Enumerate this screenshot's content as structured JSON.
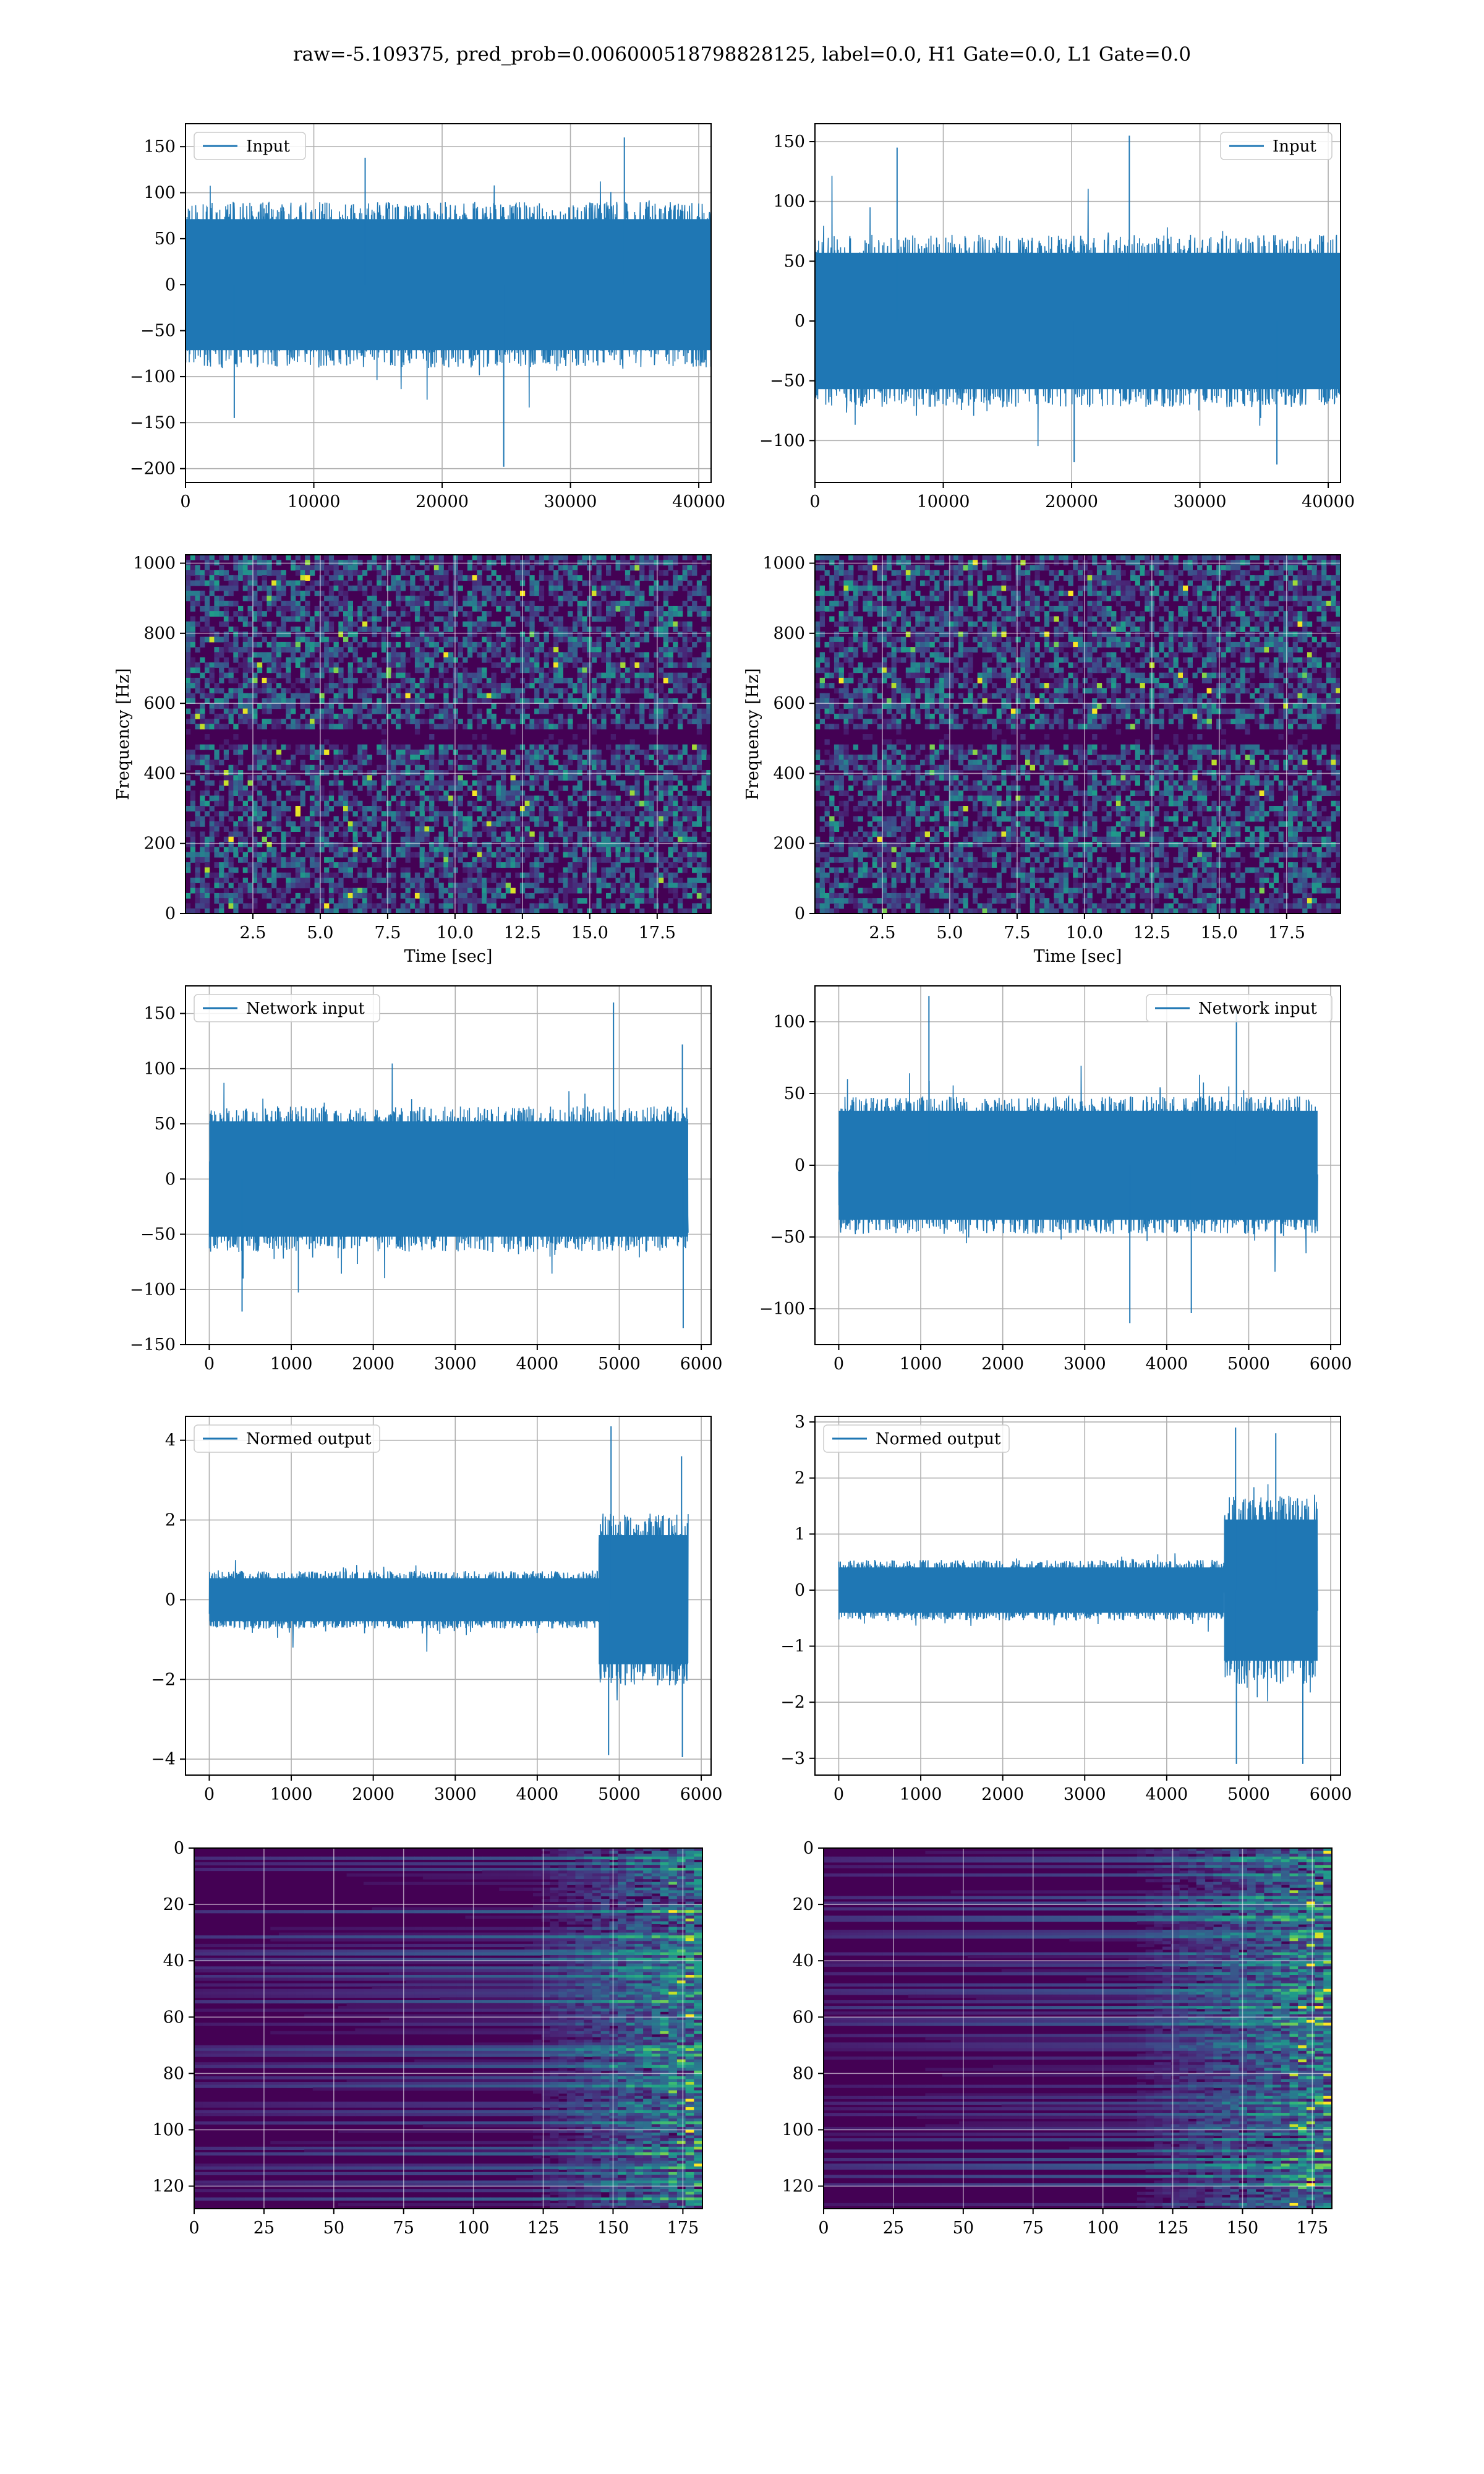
{
  "suptitle": "raw=-5.109375, pred_prob=0.006000518798828125, label=0.0, H1 Gate=0.0, L1 Gate=0.0",
  "colors": {
    "signal": "#1f77b4",
    "grid": "#b0b0b0",
    "viridis_dark": "#440154",
    "viridis_teal": "#21918c",
    "viridis_yellow": "#fde725"
  },
  "chart_data": [
    {
      "type": "line",
      "panel": "row1-left",
      "legend": "Input",
      "legend_loc": "upper left",
      "xlim": [
        0,
        40960
      ],
      "ylim": [
        -215,
        175
      ],
      "xticks": [
        0,
        10000,
        20000,
        30000,
        40000
      ],
      "yticks": [
        -200,
        -150,
        -100,
        -50,
        0,
        50,
        100,
        150
      ],
      "n_samples": 40960,
      "core_amplitude": 75,
      "extremes": [
        {
          "x": 24800,
          "y": -198
        },
        {
          "x": 34200,
          "y": 160
        },
        {
          "x": 3800,
          "y": -145
        },
        {
          "x": 14000,
          "y": 138
        }
      ],
      "grid": true
    },
    {
      "type": "line",
      "panel": "row1-right",
      "legend": "Input",
      "legend_loc": "upper right",
      "xlim": [
        0,
        40960
      ],
      "ylim": [
        -135,
        165
      ],
      "xticks": [
        0,
        10000,
        20000,
        30000,
        40000
      ],
      "yticks": [
        -100,
        -50,
        0,
        50,
        100,
        150
      ],
      "n_samples": 40960,
      "core_amplitude": 60,
      "extremes": [
        {
          "x": 24500,
          "y": 155
        },
        {
          "x": 6400,
          "y": 145
        },
        {
          "x": 20200,
          "y": -118
        },
        {
          "x": 36000,
          "y": -120
        }
      ],
      "grid": true
    },
    {
      "type": "heatmap",
      "panel": "row2-left",
      "xlabel": "Time [sec]",
      "ylabel": "Frequency [Hz]",
      "xlim": [
        0,
        19.5
      ],
      "ylim": [
        0,
        1024
      ],
      "xticks": [
        2.5,
        5.0,
        7.5,
        10.0,
        12.5,
        15.0,
        17.5
      ],
      "yticks": [
        0,
        200,
        400,
        600,
        800,
        1000
      ],
      "colormap": "viridis",
      "dark_band_hz": [
        480,
        520
      ],
      "grid": true
    },
    {
      "type": "heatmap",
      "panel": "row2-right",
      "xlabel": "Time [sec]",
      "ylabel": "Frequency [Hz]",
      "xlim": [
        0,
        19.5
      ],
      "ylim": [
        0,
        1024
      ],
      "xticks": [
        2.5,
        5.0,
        7.5,
        10.0,
        12.5,
        15.0,
        17.5
      ],
      "yticks": [
        0,
        200,
        400,
        600,
        800,
        1000
      ],
      "colormap": "viridis",
      "dark_band_hz": [
        480,
        520
      ],
      "grid": true
    },
    {
      "type": "line",
      "panel": "row3-left",
      "legend": "Network input",
      "legend_loc": "upper left",
      "xlim": [
        -290,
        6120
      ],
      "ylim": [
        -150,
        175
      ],
      "xticks": [
        0,
        1000,
        2000,
        3000,
        4000,
        5000,
        6000
      ],
      "yticks": [
        -150,
        -100,
        -50,
        0,
        50,
        100,
        150
      ],
      "n_samples": 5840,
      "core_amplitude": 55,
      "extremes": [
        {
          "x": 4930,
          "y": 160
        },
        {
          "x": 5780,
          "y": -135
        },
        {
          "x": 5770,
          "y": 122
        },
        {
          "x": 400,
          "y": -120
        }
      ],
      "grid": true
    },
    {
      "type": "line",
      "panel": "row3-right",
      "legend": "Network input",
      "legend_loc": "upper right",
      "xlim": [
        -290,
        6120
      ],
      "ylim": [
        -125,
        125
      ],
      "xticks": [
        0,
        1000,
        2000,
        3000,
        4000,
        5000,
        6000
      ],
      "yticks": [
        -100,
        -50,
        0,
        50,
        100
      ],
      "n_samples": 5840,
      "core_amplitude": 40,
      "extremes": [
        {
          "x": 4850,
          "y": 112
        },
        {
          "x": 1100,
          "y": 118
        },
        {
          "x": 3550,
          "y": -110
        },
        {
          "x": 4300,
          "y": -103
        }
      ],
      "grid": true
    },
    {
      "type": "line",
      "panel": "row4-left",
      "legend": "Normed output",
      "legend_loc": "upper left",
      "xlim": [
        -290,
        6120
      ],
      "ylim": [
        -4.4,
        4.6
      ],
      "xticks": [
        0,
        1000,
        2000,
        3000,
        4000,
        5000,
        6000
      ],
      "yticks": [
        -4,
        -2,
        0,
        2,
        4
      ],
      "n_samples": 5840,
      "core_amplitude": 0.6,
      "burst_start": 4750,
      "burst_amplitude": 1.8,
      "extremes": [
        {
          "x": 4900,
          "y": 4.35
        },
        {
          "x": 4870,
          "y": -3.9
        },
        {
          "x": 5770,
          "y": -3.95
        },
        {
          "x": 5760,
          "y": 3.6
        }
      ],
      "grid": true
    },
    {
      "type": "line",
      "panel": "row4-right",
      "legend": "Normed output",
      "legend_loc": "upper left",
      "xlim": [
        -290,
        6120
      ],
      "ylim": [
        -3.3,
        3.1
      ],
      "xticks": [
        0,
        1000,
        2000,
        3000,
        4000,
        5000,
        6000
      ],
      "yticks": [
        -3,
        -2,
        -1,
        0,
        1,
        2,
        3
      ],
      "n_samples": 5840,
      "core_amplitude": 0.45,
      "burst_start": 4700,
      "burst_amplitude": 1.4,
      "extremes": [
        {
          "x": 4840,
          "y": 2.9
        },
        {
          "x": 4850,
          "y": -3.1
        },
        {
          "x": 5660,
          "y": -3.1
        },
        {
          "x": 5330,
          "y": 2.8
        }
      ],
      "grid": true
    },
    {
      "type": "heatmap",
      "panel": "row5-left",
      "xlim": [
        0,
        182
      ],
      "ylim": [
        128,
        0
      ],
      "xticks": [
        0,
        25,
        50,
        75,
        100,
        125,
        150,
        175
      ],
      "yticks": [
        0,
        20,
        40,
        60,
        80,
        100,
        120
      ],
      "colormap": "viridis",
      "rows": 128,
      "cols": 182,
      "activity_onset": 118,
      "grid": true
    },
    {
      "type": "heatmap",
      "panel": "row5-right",
      "xlim": [
        0,
        182
      ],
      "ylim": [
        128,
        0
      ],
      "xticks": [
        0,
        25,
        50,
        75,
        100,
        125,
        150,
        175
      ],
      "yticks": [
        0,
        20,
        40,
        60,
        80,
        100,
        120
      ],
      "colormap": "viridis",
      "rows": 128,
      "cols": 182,
      "activity_onset": 108,
      "grid": true
    }
  ]
}
